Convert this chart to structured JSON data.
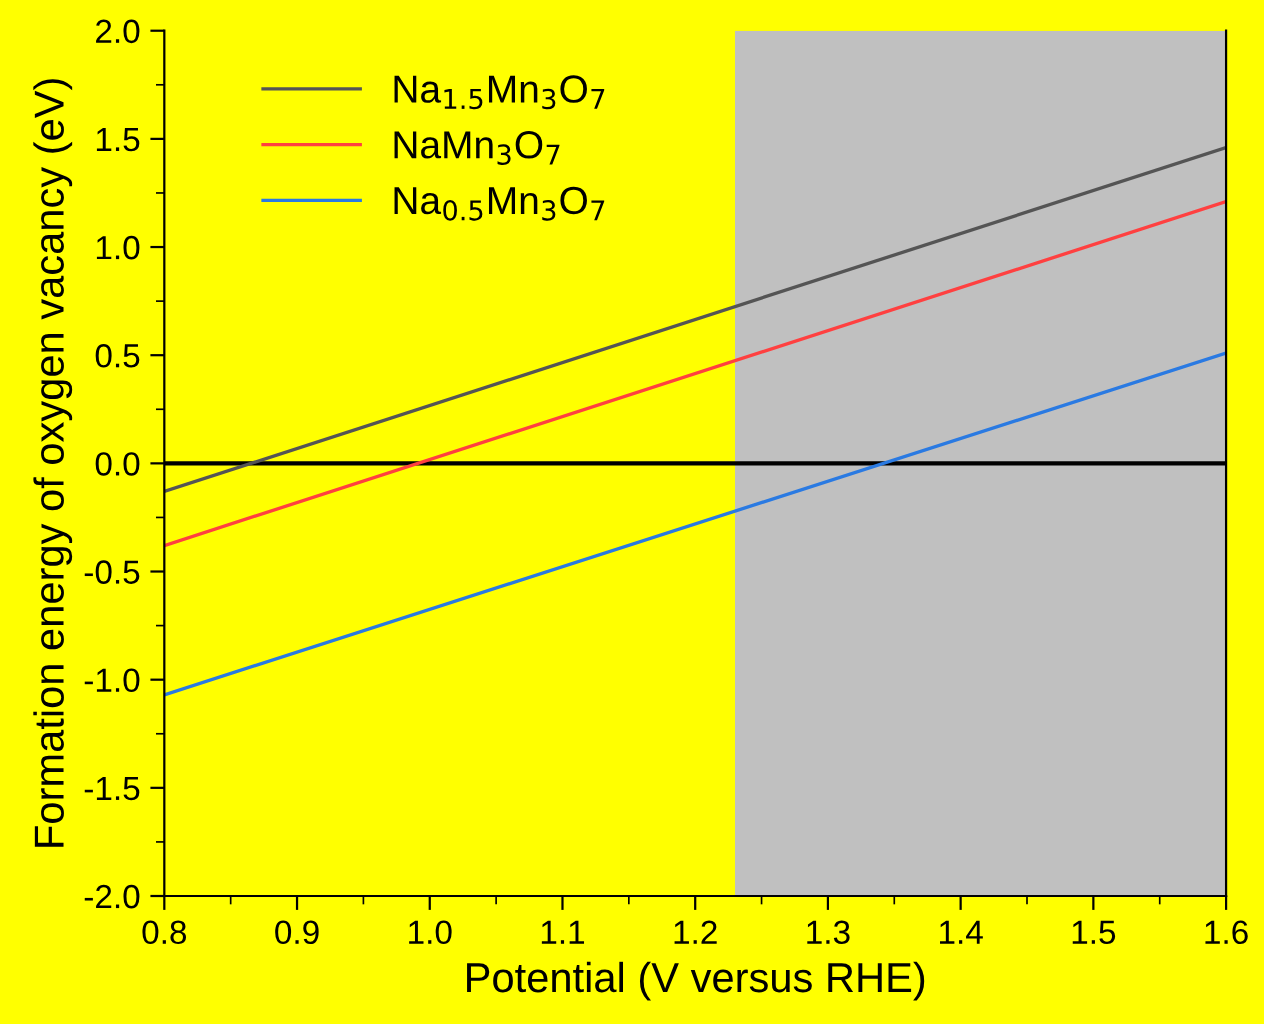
{
  "chart_data": {
    "type": "line",
    "xlabel": "Potential (V versus RHE)",
    "ylabel": "Formation energy of oxygen vacancy (eV)",
    "x": [
      0.8,
      1.6
    ],
    "series": [
      {
        "name": "Na$_{1.5}$Mn$_{3}$O$_{7}$",
        "color": "#555555",
        "values": [
          -0.13,
          1.46
        ]
      },
      {
        "name": "NaMn$_{3}$O$_{7}$",
        "color": "#ff4040",
        "values": [
          -0.38,
          1.21
        ]
      },
      {
        "name": "Na$_{0.5}$Mn$_{3}$O$_{7}$",
        "color": "#2a7ae2",
        "values": [
          -1.07,
          0.51
        ]
      }
    ],
    "xlim": [
      0.8,
      1.6
    ],
    "xticks": [
      {
        "value": 0.8,
        "label": "0.8"
      },
      {
        "value": 0.9,
        "label": "0.9"
      },
      {
        "value": 1.0,
        "label": "1.0"
      },
      {
        "value": 1.1,
        "label": "1.1"
      },
      {
        "value": 1.2,
        "label": "1.2"
      },
      {
        "value": 1.3,
        "label": "1.3"
      },
      {
        "value": 1.4,
        "label": "1.4"
      },
      {
        "value": 1.5,
        "label": "1.5"
      },
      {
        "value": 1.6,
        "label": "1.6"
      }
    ],
    "ylim": [
      -2,
      2
    ],
    "yticks": [
      {
        "value": -2,
        "label": "-2.0"
      },
      {
        "value": -1.5,
        "label": "-1.5"
      },
      {
        "value": -1,
        "label": "-1.0"
      },
      {
        "value": -0.5,
        "label": "-0.5"
      },
      {
        "value": 0,
        "label": "0.0"
      },
      {
        "value": 0.5,
        "label": "0.5"
      },
      {
        "value": 1,
        "label": "1.0"
      },
      {
        "value": 1.5,
        "label": "1.5"
      },
      {
        "value": 2,
        "label": "2.0"
      }
    ],
    "ref_lines": [
      {
        "axis": "y",
        "value": 0,
        "color": "#000000"
      }
    ],
    "bands": [
      {
        "axis": "x",
        "from": 1.23,
        "to": 1.6,
        "color": "#c0c0c0"
      }
    ],
    "grid": false,
    "legend": "top left",
    "marker": "none",
    "line_style": "solid"
  }
}
